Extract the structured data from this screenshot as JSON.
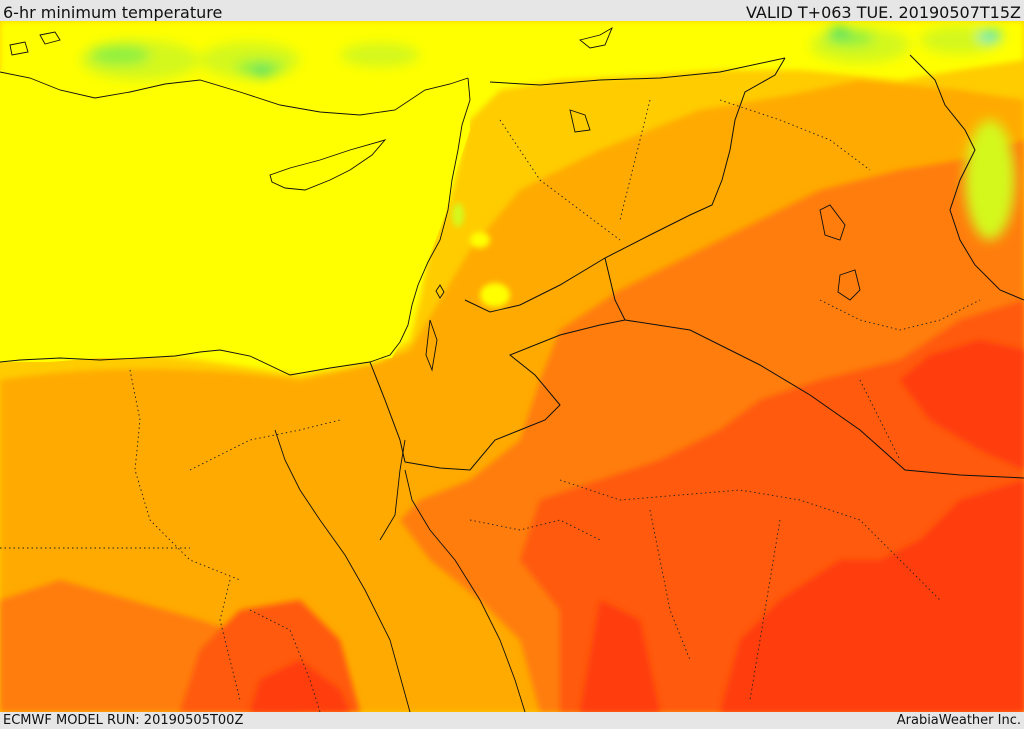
{
  "header": {
    "title": "6-hr minimum temperature",
    "valid": "VALID T+063 TUE. 20190507T15Z"
  },
  "footer": {
    "model_run": "ECMWF MODEL RUN: 20190505T00Z",
    "credit": "ArabiaWeather Inc."
  },
  "colors": {
    "background": "#e6e6e6",
    "cool_green": "#2edc6e",
    "cyan": "#34e6c8",
    "light_green": "#8ef040",
    "yellow_green": "#d4f81a",
    "yellow": "#ffff00",
    "light_orange": "#ffcc00",
    "orange": "#ffaa00",
    "dark_orange": "#ff7d10",
    "orange_red": "#ff5a0a",
    "red": "#ff3c0a",
    "boundary": "#111111"
  }
}
